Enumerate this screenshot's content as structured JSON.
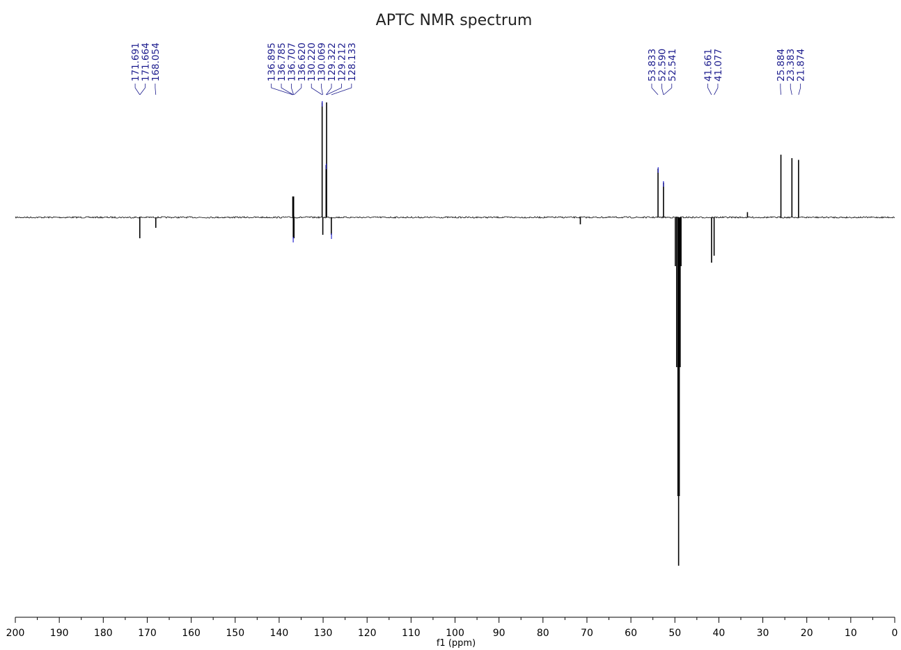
{
  "chart_data": {
    "type": "line",
    "title": "APTC NMR spectrum",
    "xlabel": "f1 (ppm)",
    "ylabel": "",
    "xlim": [
      200,
      0
    ],
    "x_reversed": true,
    "x_ticks": [
      200,
      190,
      180,
      170,
      160,
      150,
      140,
      130,
      120,
      110,
      100,
      90,
      80,
      70,
      60,
      50,
      40,
      30,
      20,
      10,
      0
    ],
    "grid": false,
    "legend": "none",
    "y_scale_note": "relative intensity; baseline = 0, up positive, down negative (arbitrary units)",
    "ylim": [
      -1.0,
      0.35
    ],
    "peaks": [
      {
        "ppm": 171.691,
        "intensity": -0.06
      },
      {
        "ppm": 168.054,
        "intensity": -0.03
      },
      {
        "ppm": 136.895,
        "intensity": 0.06
      },
      {
        "ppm": 136.785,
        "intensity": -0.06
      },
      {
        "ppm": 136.707,
        "intensity": 0.06
      },
      {
        "ppm": 136.62,
        "intensity": -0.06
      },
      {
        "ppm": 130.22,
        "intensity": 0.33
      },
      {
        "ppm": 130.069,
        "intensity": -0.05
      },
      {
        "ppm": 129.322,
        "intensity": 0.15
      },
      {
        "ppm": 129.212,
        "intensity": 0.33
      },
      {
        "ppm": 128.133,
        "intensity": -0.05
      },
      {
        "ppm": 71.5,
        "intensity": -0.02
      },
      {
        "ppm": 53.833,
        "intensity": 0.14
      },
      {
        "ppm": 52.59,
        "intensity": 0.1
      },
      {
        "ppm": 49.9,
        "intensity": -0.14
      },
      {
        "ppm": 49.6,
        "intensity": -0.43
      },
      {
        "ppm": 49.3,
        "intensity": -0.8
      },
      {
        "ppm": 49.15,
        "intensity": -1.0
      },
      {
        "ppm": 49.0,
        "intensity": -0.8
      },
      {
        "ppm": 48.8,
        "intensity": -0.43
      },
      {
        "ppm": 48.6,
        "intensity": -0.14
      },
      {
        "ppm": 41.661,
        "intensity": -0.13
      },
      {
        "ppm": 41.077,
        "intensity": -0.11
      },
      {
        "ppm": 33.5,
        "intensity": 0.015
      },
      {
        "ppm": 25.884,
        "intensity": 0.18
      },
      {
        "ppm": 23.383,
        "intensity": 0.17
      },
      {
        "ppm": 21.874,
        "intensity": 0.165
      }
    ],
    "peak_label_groups": [
      {
        "labels": [
          "171.691",
          "171.664",
          "168.054"
        ],
        "targets": [
          171.691,
          171.664,
          168.054
        ]
      },
      {
        "labels": [
          "136.895",
          "136.785",
          "136.707",
          "136.620",
          "130.220",
          "130.069",
          "129.322",
          "129.212",
          "128.133"
        ],
        "targets": [
          136.895,
          136.785,
          136.707,
          136.62,
          130.22,
          130.069,
          129.322,
          129.212,
          128.133
        ]
      },
      {
        "labels": [
          "53.833",
          "52.590",
          "52.541"
        ],
        "targets": [
          53.833,
          52.59,
          52.541
        ]
      },
      {
        "labels": [
          "41.661",
          "41.077"
        ],
        "targets": [
          41.661,
          41.077
        ]
      },
      {
        "labels": [
          "25.884",
          "23.383",
          "21.874"
        ],
        "targets": [
          25.884,
          23.383,
          21.874
        ]
      }
    ],
    "integral_markers_ppm": [
      136.8,
      130.2,
      129.3,
      128.1,
      53.8,
      52.6
    ],
    "colors": {
      "spectrum": "#000000",
      "peak_label": "#1a1a8c",
      "title": "#222222"
    }
  }
}
